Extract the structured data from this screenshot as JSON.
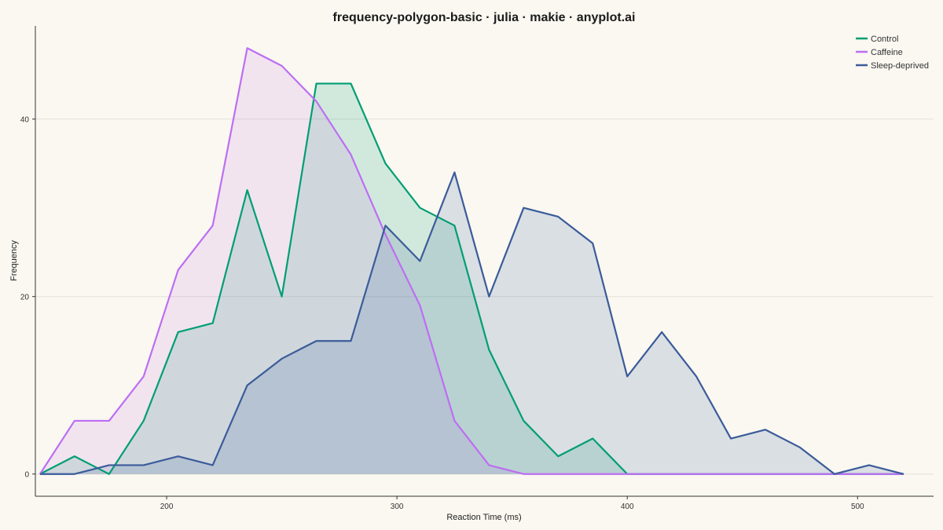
{
  "chart_data": {
    "type": "area",
    "title": "frequency-polygon-basic · julia · makie · anyplot.ai",
    "xlabel": "Reaction Time (ms)",
    "ylabel": "Frequency",
    "xlim": [
      143,
      533
    ],
    "ylim": [
      -2.5,
      50.5
    ],
    "xticks": [
      200,
      300,
      400,
      500
    ],
    "yticks": [
      0,
      20,
      40
    ],
    "grid": "horizontal",
    "legend_position": "top-right",
    "x": [
      145,
      160,
      175,
      190,
      205,
      220,
      235,
      250,
      265,
      280,
      295,
      310,
      325,
      340,
      355,
      370,
      385,
      400,
      415,
      430,
      445,
      460,
      475,
      490,
      505,
      520
    ],
    "series": [
      {
        "name": "Control",
        "color": "#009E73",
        "fill": "#009E73",
        "values": [
          0,
          2,
          0,
          6,
          16,
          17,
          32,
          20,
          44,
          44,
          35,
          30,
          28,
          14,
          6,
          2,
          4,
          0,
          0,
          0,
          0,
          0,
          0,
          0,
          0,
          0
        ]
      },
      {
        "name": "Caffeine",
        "color": "#BD6EF3",
        "fill": "#C77CE6",
        "values": [
          0,
          6,
          6,
          11,
          23,
          28,
          48,
          46,
          42,
          36,
          27,
          19,
          6,
          1,
          0,
          0,
          0,
          0,
          0,
          0,
          0,
          0,
          0,
          0,
          0,
          0
        ]
      },
      {
        "name": "Sleep-deprived",
        "color": "#3B5B9A",
        "fill": "#3B5B9A",
        "values": [
          0,
          0,
          1,
          1,
          2,
          1,
          10,
          13,
          15,
          15,
          28,
          24,
          34,
          20,
          30,
          29,
          26,
          11,
          16,
          11,
          4,
          5,
          3,
          0,
          1,
          0
        ]
      }
    ]
  }
}
